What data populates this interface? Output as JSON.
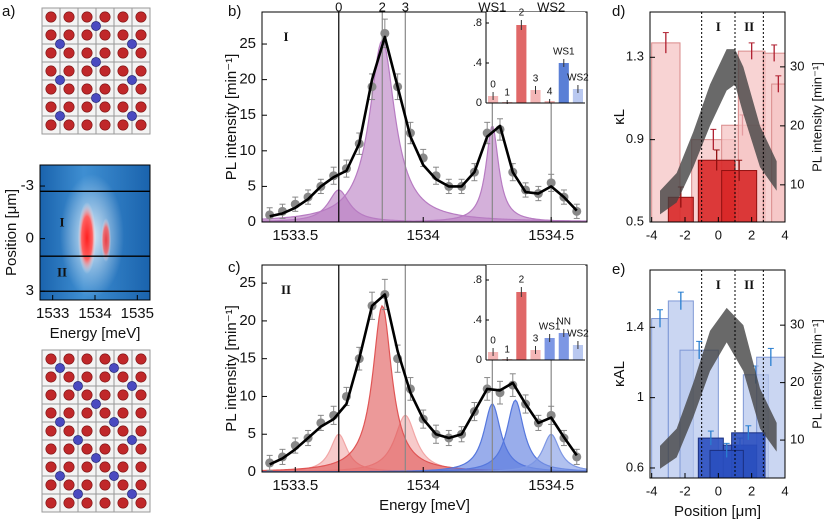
{
  "chart_data": [
    {
      "type": "heatmap",
      "label": "a)",
      "xlabel": "Energy [meV]",
      "ylabel": "Position [μm]",
      "xlim": [
        1532.7,
        1535.3
      ],
      "ylim": [
        -4.2,
        3.5
      ],
      "xticks": [
        1533,
        1534,
        1535
      ],
      "yticks": [
        -3,
        0,
        3
      ],
      "hlines": [
        -2.7,
        1,
        3
      ],
      "regions": [
        "I",
        "II"
      ]
    },
    {
      "type": "line",
      "label": "b)",
      "region": "I",
      "ylabel": "PL intensity [min⁻¹]",
      "xlim": [
        1533.37,
        1534.64
      ],
      "ylim": [
        0,
        29.5
      ],
      "xticks": [
        1533.5,
        1534,
        1534.5
      ],
      "yticks": [
        0,
        5,
        10,
        15,
        20,
        25
      ],
      "x": [
        1533.4,
        1533.45,
        1533.5,
        1533.55,
        1533.6,
        1533.65,
        1533.7,
        1533.75,
        1533.8,
        1533.85,
        1533.9,
        1533.95,
        1534,
        1534.05,
        1534.1,
        1534.15,
        1534.2,
        1534.25,
        1534.3,
        1534.35,
        1534.4,
        1534.45,
        1534.5,
        1534.55,
        1534.6
      ],
      "series": [
        {
          "color": "#888888",
          "values": [
            1,
            1.5,
            2.5,
            3.5,
            5,
            6.5,
            7.5,
            11,
            19,
            26.5,
            19,
            12.5,
            9,
            6.5,
            5,
            5,
            7,
            12.5,
            13,
            7,
            4.5,
            4,
            5.5,
            3.5,
            1.5
          ],
          "errors": [
            1,
            1,
            1,
            1,
            1,
            1.2,
            1.2,
            1.5,
            1.8,
            2,
            1.8,
            1.5,
            1.2,
            1.2,
            1,
            1,
            1.2,
            1.5,
            1.5,
            1.2,
            1,
            1,
            1.2,
            1,
            1
          ]
        },
        {
          "color": "#000000",
          "values": [
            0.8,
            1.2,
            2,
            3.2,
            5,
            6.3,
            7.2,
            11,
            20,
            26,
            19,
            12,
            8,
            6,
            5,
            5,
            7,
            12,
            13.5,
            7,
            4.2,
            4,
            5,
            3.5,
            1.6
          ]
        }
      ],
      "peaks": [
        {
          "center": 1533.84,
          "height": 25.5,
          "width": 0.06,
          "color": "#b77bc2"
        },
        {
          "center": 1533.67,
          "height": 4.5,
          "width": 0.05,
          "color": "#b77bc2"
        },
        {
          "center": 1534.27,
          "height": 13.5,
          "width": 0.03,
          "color": "#b77bc2"
        }
      ],
      "markers": [
        {
          "x": 1533.67,
          "label": "0",
          "color": "#000000"
        },
        {
          "x": 1533.84,
          "label": "2",
          "color": "#888888"
        },
        {
          "x": 1533.93,
          "label": "3",
          "color": "#888888"
        },
        {
          "x": 1534.27,
          "label": "WS1",
          "color": "#888888"
        },
        {
          "x": 1534.5,
          "label": "WS2",
          "color": "#888888"
        }
      ],
      "inset": {
        "type": "bar",
        "categories": [
          "0",
          "1",
          "2",
          "3",
          "4",
          "WS1",
          "WS2"
        ],
        "values": [
          0.07,
          0.01,
          0.78,
          0.13,
          0.02,
          0.4,
          0.14
        ],
        "errors": [
          0.04,
          0.02,
          0.05,
          0.04,
          0.02,
          0.04,
          0.04
        ],
        "colors": [
          "#f4b6b6",
          "#f4b6b6",
          "#e06868",
          "#f4b6b6",
          "#f4b6b6",
          "#5a7fd6",
          "#b9c8f0"
        ],
        "ylim": [
          0,
          0.91
        ],
        "yticks": [
          0,
          {
            "value": 0.4,
            "label": ".4"
          },
          {
            "value": 0.8,
            "label": ".8"
          }
        ]
      }
    },
    {
      "type": "line",
      "label": "c)",
      "region": "II",
      "ylabel": "PL intensity [min⁻¹]",
      "xlabel": "Energy [meV]",
      "xlim": [
        1533.37,
        1534.64
      ],
      "ylim": [
        0,
        27.4
      ],
      "xticks": [
        1533.5,
        1534,
        1534.5
      ],
      "yticks": [
        0,
        5,
        10,
        15,
        20,
        25
      ],
      "x": [
        1533.4,
        1533.45,
        1533.5,
        1533.55,
        1533.6,
        1533.65,
        1533.7,
        1533.75,
        1533.8,
        1533.85,
        1533.9,
        1533.95,
        1534,
        1534.05,
        1534.1,
        1534.15,
        1534.2,
        1534.25,
        1534.3,
        1534.35,
        1534.4,
        1534.45,
        1534.5,
        1534.55,
        1534.6
      ],
      "series": [
        {
          "color": "#888888",
          "values": [
            1.2,
            2,
            3.5,
            4.5,
            6.5,
            7.5,
            10,
            15,
            22,
            23.5,
            15,
            11,
            7,
            5,
            4.5,
            5,
            8,
            11,
            10.5,
            11.5,
            9,
            6.5,
            7.5,
            4.5,
            2
          ],
          "errors": [
            1,
            1,
            1,
            1,
            1,
            1.2,
            1.2,
            1.5,
            1.8,
            2,
            1.8,
            1.5,
            1.2,
            1.2,
            1,
            1,
            1.2,
            1.5,
            1.5,
            1.5,
            1.2,
            1,
            1.2,
            1,
            1
          ]
        },
        {
          "color": "#000000",
          "values": [
            1,
            1.8,
            3,
            4.5,
            6,
            7,
            9,
            15,
            22,
            23.5,
            16,
            10.5,
            7,
            5,
            4.5,
            5,
            8,
            11,
            10.8,
            11.8,
            9,
            6.5,
            7.2,
            4.6,
            2.2
          ]
        }
      ],
      "peaks": [
        {
          "center": 1533.67,
          "height": 5,
          "width": 0.04,
          "color": "#f2a6a6"
        },
        {
          "center": 1533.93,
          "height": 7.5,
          "width": 0.05,
          "color": "#f2a6a6"
        },
        {
          "center": 1533.84,
          "height": 22,
          "width": 0.045,
          "color": "#e05555"
        },
        {
          "center": 1534.27,
          "height": 9,
          "width": 0.04,
          "color": "#5577dd"
        },
        {
          "center": 1534.36,
          "height": 9.5,
          "width": 0.04,
          "color": "#5577dd"
        },
        {
          "center": 1534.5,
          "height": 5,
          "width": 0.04,
          "color": "#7d97e4"
        }
      ],
      "markers": [
        {
          "x": 1533.67,
          "color": "#000000"
        },
        {
          "x": 1533.93,
          "color": "#888888"
        },
        {
          "x": 1534.27,
          "color": "#888888"
        },
        {
          "x": 1534.5,
          "color": "#888888"
        }
      ],
      "inset": {
        "type": "bar",
        "categories": [
          "0",
          "1",
          "2",
          "3",
          "WS1",
          "NN",
          "WS2"
        ],
        "values": [
          0.08,
          0.01,
          0.68,
          0.1,
          0.22,
          0.27,
          0.15
        ],
        "errors": [
          0.04,
          0.02,
          0.05,
          0.04,
          0.04,
          0.04,
          0.04
        ],
        "colors": [
          "#f4b6b6",
          "#f4b6b6",
          "#e06868",
          "#f4b6b6",
          "#7d97e4",
          "#7d97e4",
          "#b9c8f0"
        ],
        "ylim": [
          0,
          0.95
        ],
        "yticks": [
          0,
          {
            "value": 0.4,
            "label": ".4"
          },
          {
            "value": 0.8,
            "label": ".8"
          }
        ]
      }
    },
    {
      "type": "histogram",
      "label": "d)",
      "ylabel": "κL",
      "ylabel_color": "#d02020",
      "y2label": "PL intensity [min⁻¹]",
      "xlim": [
        -4.1,
        4
      ],
      "ylim": [
        0.5,
        1.52
      ],
      "y2lim": [
        3.7,
        39.3
      ],
      "xticks": [
        -4,
        -2,
        0,
        2,
        4
      ],
      "yticks": [
        0.5,
        0.9,
        1.3
      ],
      "y2ticks": [
        10,
        20,
        30
      ],
      "series": [
        {
          "color": "#f6c4c4",
          "stroke": "#d98a8a",
          "error_color": "#b02030",
          "bars": [
            {
              "x0": -4,
              "x1": -2.3,
              "value": 1.37,
              "error": 0.05
            },
            {
              "x0": -1.6,
              "x1": 1,
              "value": 0.9,
              "error": 0.05
            },
            {
              "x0": 0.2,
              "x1": 2.7,
              "value": 0.97,
              "error": 0.05
            },
            {
              "x0": 1.2,
              "x1": 2.8,
              "value": 1.33,
              "error": 0.04
            },
            {
              "x0": 2.7,
              "x1": 4,
              "value": 1.32,
              "error": 0.04
            },
            {
              "x0": 3.2,
              "x1": 4,
              "value": 1.17,
              "error": 0.04
            }
          ]
        },
        {
          "color": "#d82828",
          "stroke": "#901010",
          "error_color": "#901010",
          "bars": [
            {
              "x0": -3,
              "x1": -1.5,
              "value": 0.62,
              "error": 0.05
            },
            {
              "x0": -1.2,
              "x1": 1,
              "value": 0.8,
              "error": 0.05
            },
            {
              "x0": 0.2,
              "x1": 2.3,
              "value": 0.75,
              "error": 0.05
            }
          ]
        }
      ],
      "band": {
        "x": [
          -3.5,
          -2.5,
          -1.5,
          -0.5,
          0.5,
          1,
          1.5,
          2.5,
          3.5
        ],
        "lower": [
          5,
          7,
          13,
          20,
          26,
          27,
          22,
          13,
          9
        ],
        "upper": [
          9,
          12,
          19,
          27,
          33,
          33,
          30,
          20,
          14
        ]
      },
      "vlines": [
        -1,
        1,
        2.7
      ],
      "regions": [
        "I",
        "II"
      ]
    },
    {
      "type": "histogram",
      "label": "e)",
      "ylabel": "κAL",
      "ylabel_color": "#2050c0",
      "y2label": "PL intensity [min⁻¹]",
      "xlabel": "Position [μm]",
      "xlim": [
        -4.1,
        4
      ],
      "ylim": [
        0.543,
        1.726
      ],
      "y2lim": [
        3.4,
        39.6
      ],
      "xticks": [
        -4,
        -2,
        0,
        2,
        4
      ],
      "yticks": [
        0.6,
        1,
        1.4
      ],
      "y2ticks": [
        10,
        20,
        30
      ],
      "series": [
        {
          "color": "#b8c8ee",
          "stroke": "#7f98d6",
          "error_color": "#2a7fd0",
          "bars": [
            {
              "x0": -4,
              "x1": -3,
              "value": 1.45,
              "error": 0.05
            },
            {
              "x0": -3,
              "x1": -1.5,
              "value": 1.55,
              "error": 0.05
            },
            {
              "x0": -2.3,
              "x1": 0,
              "value": 1.27,
              "error": 0.05
            },
            {
              "x0": 1.5,
              "x1": 3,
              "value": 1.13,
              "error": 0.05
            },
            {
              "x0": 2.3,
              "x1": 4,
              "value": 1.23,
              "error": 0.05
            }
          ]
        },
        {
          "color": "#2a4fbf",
          "stroke": "#1a2f80",
          "error_color": "#2a7fd0",
          "bars": [
            {
              "x0": -1.2,
              "x1": 0.3,
              "value": 0.77,
              "error": 0.04
            },
            {
              "x0": 0.3,
              "x1": 2.3,
              "value": 0.73,
              "error": 0.04
            },
            {
              "x0": 0.8,
              "x1": 2.8,
              "value": 0.8,
              "error": 0.04
            },
            {
              "x0": -0.5,
              "x1": 1.5,
              "value": 0.7,
              "error": 0.04
            }
          ]
        }
      ],
      "band": {
        "x": [
          -3.5,
          -2.5,
          -1.5,
          -0.5,
          0.5,
          1.5,
          2.5,
          3.5
        ],
        "lower": [
          5,
          7,
          14,
          22,
          27,
          22,
          12,
          8
        ],
        "upper": [
          9,
          12,
          20,
          29,
          33,
          30,
          19,
          13
        ]
      },
      "vlines": [
        -1,
        1,
        2.7
      ],
      "regions": [
        "I",
        "II"
      ]
    }
  ]
}
